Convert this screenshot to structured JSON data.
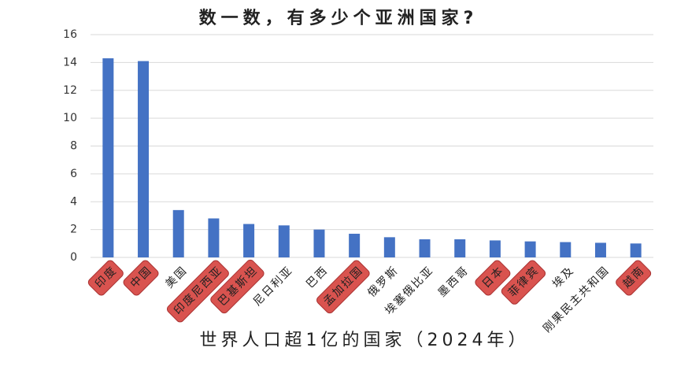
{
  "chart_data": {
    "type": "bar",
    "title": "数一数，有多少个亚洲国家?",
    "subtitle": "世界人口超1亿的国家（2024年）",
    "categories": [
      "印度",
      "中国",
      "美国",
      "印度尼西亚",
      "巴基斯坦",
      "尼日利亚",
      "巴西",
      "孟加拉国",
      "俄罗斯",
      "埃塞俄比亚",
      "墨西哥",
      "日本",
      "菲律宾",
      "埃及",
      "刚果民主共和国",
      "越南"
    ],
    "values": [
      14.3,
      14.1,
      3.4,
      2.8,
      2.4,
      2.3,
      2.0,
      1.7,
      1.45,
      1.3,
      1.3,
      1.22,
      1.15,
      1.1,
      1.05,
      1.0
    ],
    "color": "#4472c4",
    "highlighted": [
      0,
      1,
      3,
      4,
      7,
      11,
      12,
      15
    ],
    "highlight_color": "#d9534f",
    "ylim": [
      0,
      16
    ],
    "yticks": [
      0,
      2,
      4,
      6,
      8,
      10,
      12,
      14,
      16
    ],
    "grid": true
  }
}
